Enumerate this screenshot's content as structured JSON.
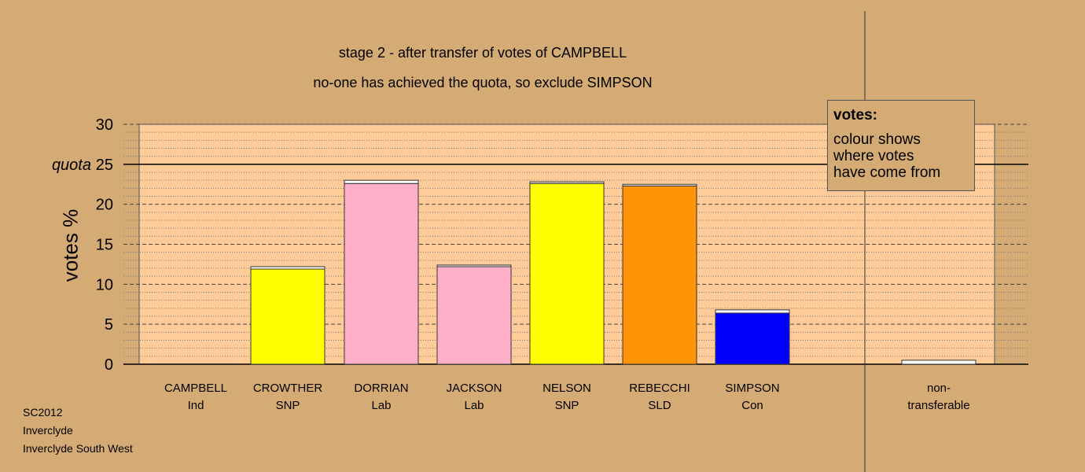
{
  "titles": {
    "line1": "stage 2 - after transfer of votes of CAMPBELL",
    "line2": "no-one has achieved the quota, so exclude SIMPSON"
  },
  "legend": {
    "heading": "votes:",
    "line1": "colour shows",
    "line2": "where votes",
    "line3": "have come from"
  },
  "footer": {
    "line1": "SC2012",
    "line2": "Inverclyde",
    "line3": "Inverclyde South West"
  },
  "colors": {
    "background": "#d4aa75",
    "plot_area": "#ffcc99",
    "Ind": "#d4aa75",
    "SNP": "#ffff00",
    "Lab": "#ffb0c8",
    "SLD": "#ff9408",
    "Con": "#0000ff",
    "transferred": "#ffffff"
  },
  "chart_data": {
    "type": "bar",
    "ylabel": "votes %",
    "ylim": [
      0,
      30
    ],
    "yticks": [
      0,
      5,
      10,
      15,
      20,
      25,
      30
    ],
    "quota": 25,
    "quota_label": "quota",
    "candidates": [
      {
        "name": "CAMPBELL",
        "party": "Ind",
        "base": 0,
        "transfer": 0
      },
      {
        "name": "CROWTHER",
        "party": "SNP",
        "base": 11.9,
        "transfer": 0.3
      },
      {
        "name": "DORRIAN",
        "party": "Lab",
        "base": 22.6,
        "transfer": 0.4
      },
      {
        "name": "JACKSON",
        "party": "Lab",
        "base": 12.2,
        "transfer": 0.2
      },
      {
        "name": "NELSON",
        "party": "SNP",
        "base": 22.6,
        "transfer": 0.2
      },
      {
        "name": "REBECCHI",
        "party": "SLD",
        "base": 22.3,
        "transfer": 0.2
      },
      {
        "name": "SIMPSON",
        "party": "Con",
        "base": 6.4,
        "transfer": 0.4
      }
    ],
    "nontransferable": {
      "line1": "non-",
      "line2": "transferable",
      "value": 0.5
    }
  }
}
